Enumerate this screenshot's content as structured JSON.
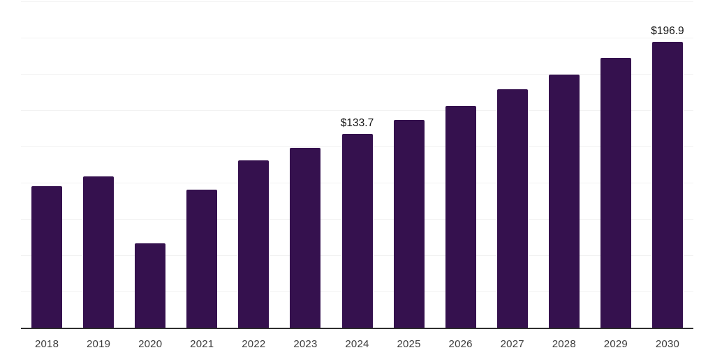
{
  "chart": {
    "background_color": "#ffffff",
    "bar_color": "#35114e",
    "grid_color": "#f2f2f2",
    "axis_color": "#2e2e2e",
    "tick_label_color": "#3c3c3c",
    "data_label_color": "#141414"
  },
  "chart_data": {
    "type": "bar",
    "title": "",
    "xlabel": "",
    "ylabel": "",
    "categories": [
      "2018",
      "2019",
      "2020",
      "2021",
      "2022",
      "2023",
      "2024",
      "2025",
      "2026",
      "2027",
      "2028",
      "2029",
      "2030"
    ],
    "values": [
      97.8,
      104.4,
      58.0,
      95.0,
      115.5,
      123.8,
      133.7,
      143.3,
      153.0,
      164.5,
      174.6,
      186.0,
      196.9
    ],
    "data_labels": [
      {
        "category": "2024",
        "text": "$133.7"
      },
      {
        "category": "2030",
        "text": "$196.9"
      }
    ],
    "ylim": [
      0,
      225
    ],
    "gridline_step": 25,
    "grid": true,
    "y_tick_labels_shown": false,
    "legend": "none"
  }
}
